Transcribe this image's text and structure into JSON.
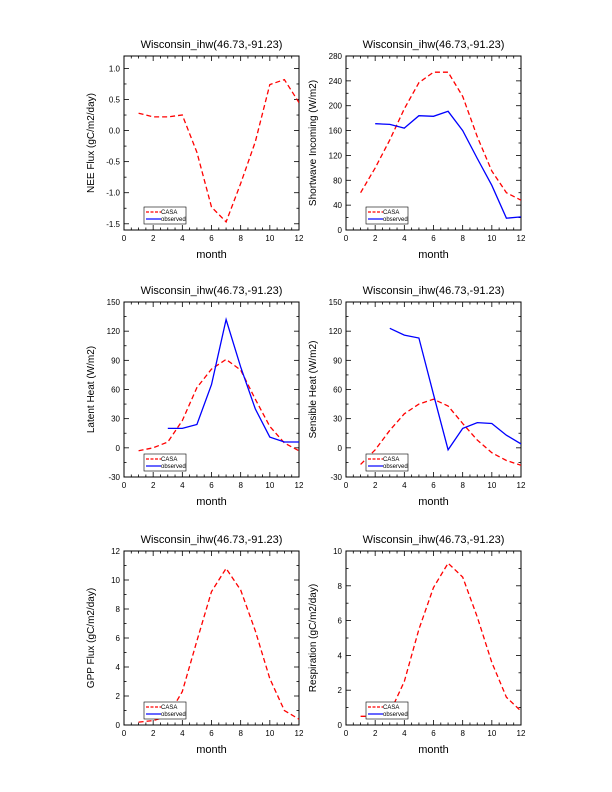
{
  "chart_data": [
    {
      "type": "line",
      "title": "Wisconsin_ihw(46.73,-91.23)",
      "xlabel": "month",
      "ylabel": "NEE Flux (gC/m2/day)",
      "xlim": [
        0,
        12
      ],
      "ylim": [
        -1.6,
        1.2
      ],
      "xticks": [
        0,
        2,
        4,
        6,
        8,
        10,
        12
      ],
      "yticks": [
        -1.5,
        -1.0,
        -0.5,
        0.0,
        0.5,
        1.0
      ],
      "ytick_labels": [
        "-1.5",
        "-1.0",
        "-0.5",
        "0.0",
        "0.5",
        "1.0"
      ],
      "legend": {
        "position": "bottom-left"
      },
      "series": [
        {
          "name": "CASA",
          "color": "#ff0000",
          "style": "dashed",
          "x": [
            1,
            2,
            3,
            4,
            5,
            6,
            7,
            8,
            9,
            10,
            11,
            12
          ],
          "y": [
            0.28,
            0.22,
            0.22,
            0.25,
            -0.35,
            -1.23,
            -1.47,
            -0.85,
            -0.18,
            0.74,
            0.82,
            0.45
          ]
        },
        {
          "name": "observed",
          "color": "#0000ff",
          "style": "solid",
          "x": [],
          "y": []
        }
      ]
    },
    {
      "type": "line",
      "title": "Wisconsin_ihw(46.73,-91.23)",
      "xlabel": "month",
      "ylabel": "Shortwave Incoming (W/m2)",
      "xlim": [
        0,
        12
      ],
      "ylim": [
        0,
        280
      ],
      "xticks": [
        0,
        2,
        4,
        6,
        8,
        10,
        12
      ],
      "yticks": [
        0,
        40,
        80,
        120,
        160,
        200,
        240,
        280
      ],
      "ytick_labels": [
        "0",
        "40",
        "80",
        "120",
        "160",
        "200",
        "240",
        "280"
      ],
      "legend": {
        "position": "bottom-left"
      },
      "series": [
        {
          "name": "CASA",
          "color": "#ff0000",
          "style": "dashed",
          "x": [
            1,
            2,
            3,
            4,
            5,
            6,
            7,
            8,
            9,
            10,
            11,
            12
          ],
          "y": [
            60,
            100,
            145,
            195,
            237,
            254,
            254,
            215,
            150,
            95,
            60,
            48
          ]
        },
        {
          "name": "observed",
          "color": "#0000ff",
          "style": "solid",
          "x": [
            2,
            3,
            4,
            5,
            6,
            7,
            8,
            9,
            10,
            11,
            12
          ],
          "y": [
            171,
            170,
            164,
            184,
            183,
            191,
            160,
            115,
            72,
            19,
            21
          ]
        }
      ]
    },
    {
      "type": "line",
      "title": "Wisconsin_ihw(46.73,-91.23)",
      "xlabel": "month",
      "ylabel": "Latent Heat (W/m2)",
      "xlim": [
        0,
        12
      ],
      "ylim": [
        -30,
        150
      ],
      "xticks": [
        0,
        2,
        4,
        6,
        8,
        10,
        12
      ],
      "yticks": [
        -30,
        0,
        30,
        60,
        90,
        120,
        150
      ],
      "ytick_labels": [
        "-30",
        "0",
        "30",
        "60",
        "90",
        "120",
        "150"
      ],
      "legend": {
        "position": "bottom-left"
      },
      "series": [
        {
          "name": "CASA",
          "color": "#ff0000",
          "style": "dashed",
          "x": [
            1,
            2,
            3,
            4,
            5,
            6,
            7,
            8,
            9,
            10,
            11,
            12
          ],
          "y": [
            -3,
            0,
            6,
            28,
            62,
            81,
            91,
            80,
            50,
            22,
            5,
            -3
          ]
        },
        {
          "name": "observed",
          "color": "#0000ff",
          "style": "solid",
          "x": [
            3,
            4,
            5,
            6,
            7,
            8,
            9,
            10,
            11,
            12
          ],
          "y": [
            20,
            20,
            24,
            65,
            132,
            83,
            40,
            11,
            6,
            6
          ]
        }
      ]
    },
    {
      "type": "line",
      "title": "Wisconsin_ihw(46.73,-91.23)",
      "xlabel": "month",
      "ylabel": "Sensible Heat (W/m2)",
      "xlim": [
        0,
        12
      ],
      "ylim": [
        -30,
        150
      ],
      "xticks": [
        0,
        2,
        4,
        6,
        8,
        10,
        12
      ],
      "yticks": [
        -30,
        0,
        30,
        60,
        90,
        120,
        150
      ],
      "ytick_labels": [
        "-30",
        "0",
        "30",
        "60",
        "90",
        "120",
        "150"
      ],
      "legend": {
        "position": "bottom-left"
      },
      "series": [
        {
          "name": "CASA",
          "color": "#ff0000",
          "style": "dashed",
          "x": [
            1,
            2,
            3,
            4,
            5,
            6,
            7,
            8,
            9,
            10,
            11,
            12
          ],
          "y": [
            -17,
            -2,
            18,
            35,
            45,
            50,
            43,
            25,
            8,
            -5,
            -13,
            -18
          ]
        },
        {
          "name": "observed",
          "color": "#0000ff",
          "style": "solid",
          "x": [
            3,
            4,
            5,
            6,
            7,
            8,
            9,
            10,
            11,
            12
          ],
          "y": [
            123,
            116,
            113,
            55,
            -2,
            20,
            26,
            25,
            13,
            4
          ]
        }
      ]
    },
    {
      "type": "line",
      "title": "Wisconsin_ihw(46.73,-91.23)",
      "xlabel": "month",
      "ylabel": "GPP Flux (gC/m2/day)",
      "xlim": [
        0,
        12
      ],
      "ylim": [
        0,
        12
      ],
      "xticks": [
        0,
        2,
        4,
        6,
        8,
        10,
        12
      ],
      "yticks": [
        0,
        2,
        4,
        6,
        8,
        10,
        12
      ],
      "ytick_labels": [
        "0",
        "2",
        "4",
        "6",
        "8",
        "10",
        "12"
      ],
      "legend": {
        "position": "bottom-left"
      },
      "series": [
        {
          "name": "CASA",
          "color": "#ff0000",
          "style": "dashed",
          "x": [
            1,
            2,
            3,
            4,
            5,
            6,
            7,
            8,
            9,
            10,
            11,
            12
          ],
          "y": [
            0.2,
            0.3,
            0.6,
            2.3,
            5.8,
            9.2,
            10.8,
            9.3,
            6.5,
            3.2,
            1.0,
            0.4
          ]
        },
        {
          "name": "observed",
          "color": "#0000ff",
          "style": "solid",
          "x": [],
          "y": []
        }
      ]
    },
    {
      "type": "line",
      "title": "Wisconsin_ihw(46.73,-91.23)",
      "xlabel": "month",
      "ylabel": "Respiration (gC/m2/day)",
      "xlim": [
        0,
        12
      ],
      "ylim": [
        0,
        10
      ],
      "xticks": [
        0,
        2,
        4,
        6,
        8,
        10,
        12
      ],
      "yticks": [
        0,
        2,
        4,
        6,
        8,
        10
      ],
      "ytick_labels": [
        "0",
        "2",
        "4",
        "6",
        "8",
        "10"
      ],
      "legend": {
        "position": "bottom-left"
      },
      "series": [
        {
          "name": "CASA",
          "color": "#ff0000",
          "style": "dashed",
          "x": [
            1,
            2,
            3,
            4,
            5,
            6,
            7,
            8,
            9,
            10,
            11,
            12
          ],
          "y": [
            0.5,
            0.5,
            0.7,
            2.5,
            5.5,
            7.9,
            9.3,
            8.5,
            6.2,
            3.6,
            1.6,
            0.8
          ]
        },
        {
          "name": "observed",
          "color": "#0000ff",
          "style": "solid",
          "x": [],
          "y": []
        }
      ]
    }
  ]
}
